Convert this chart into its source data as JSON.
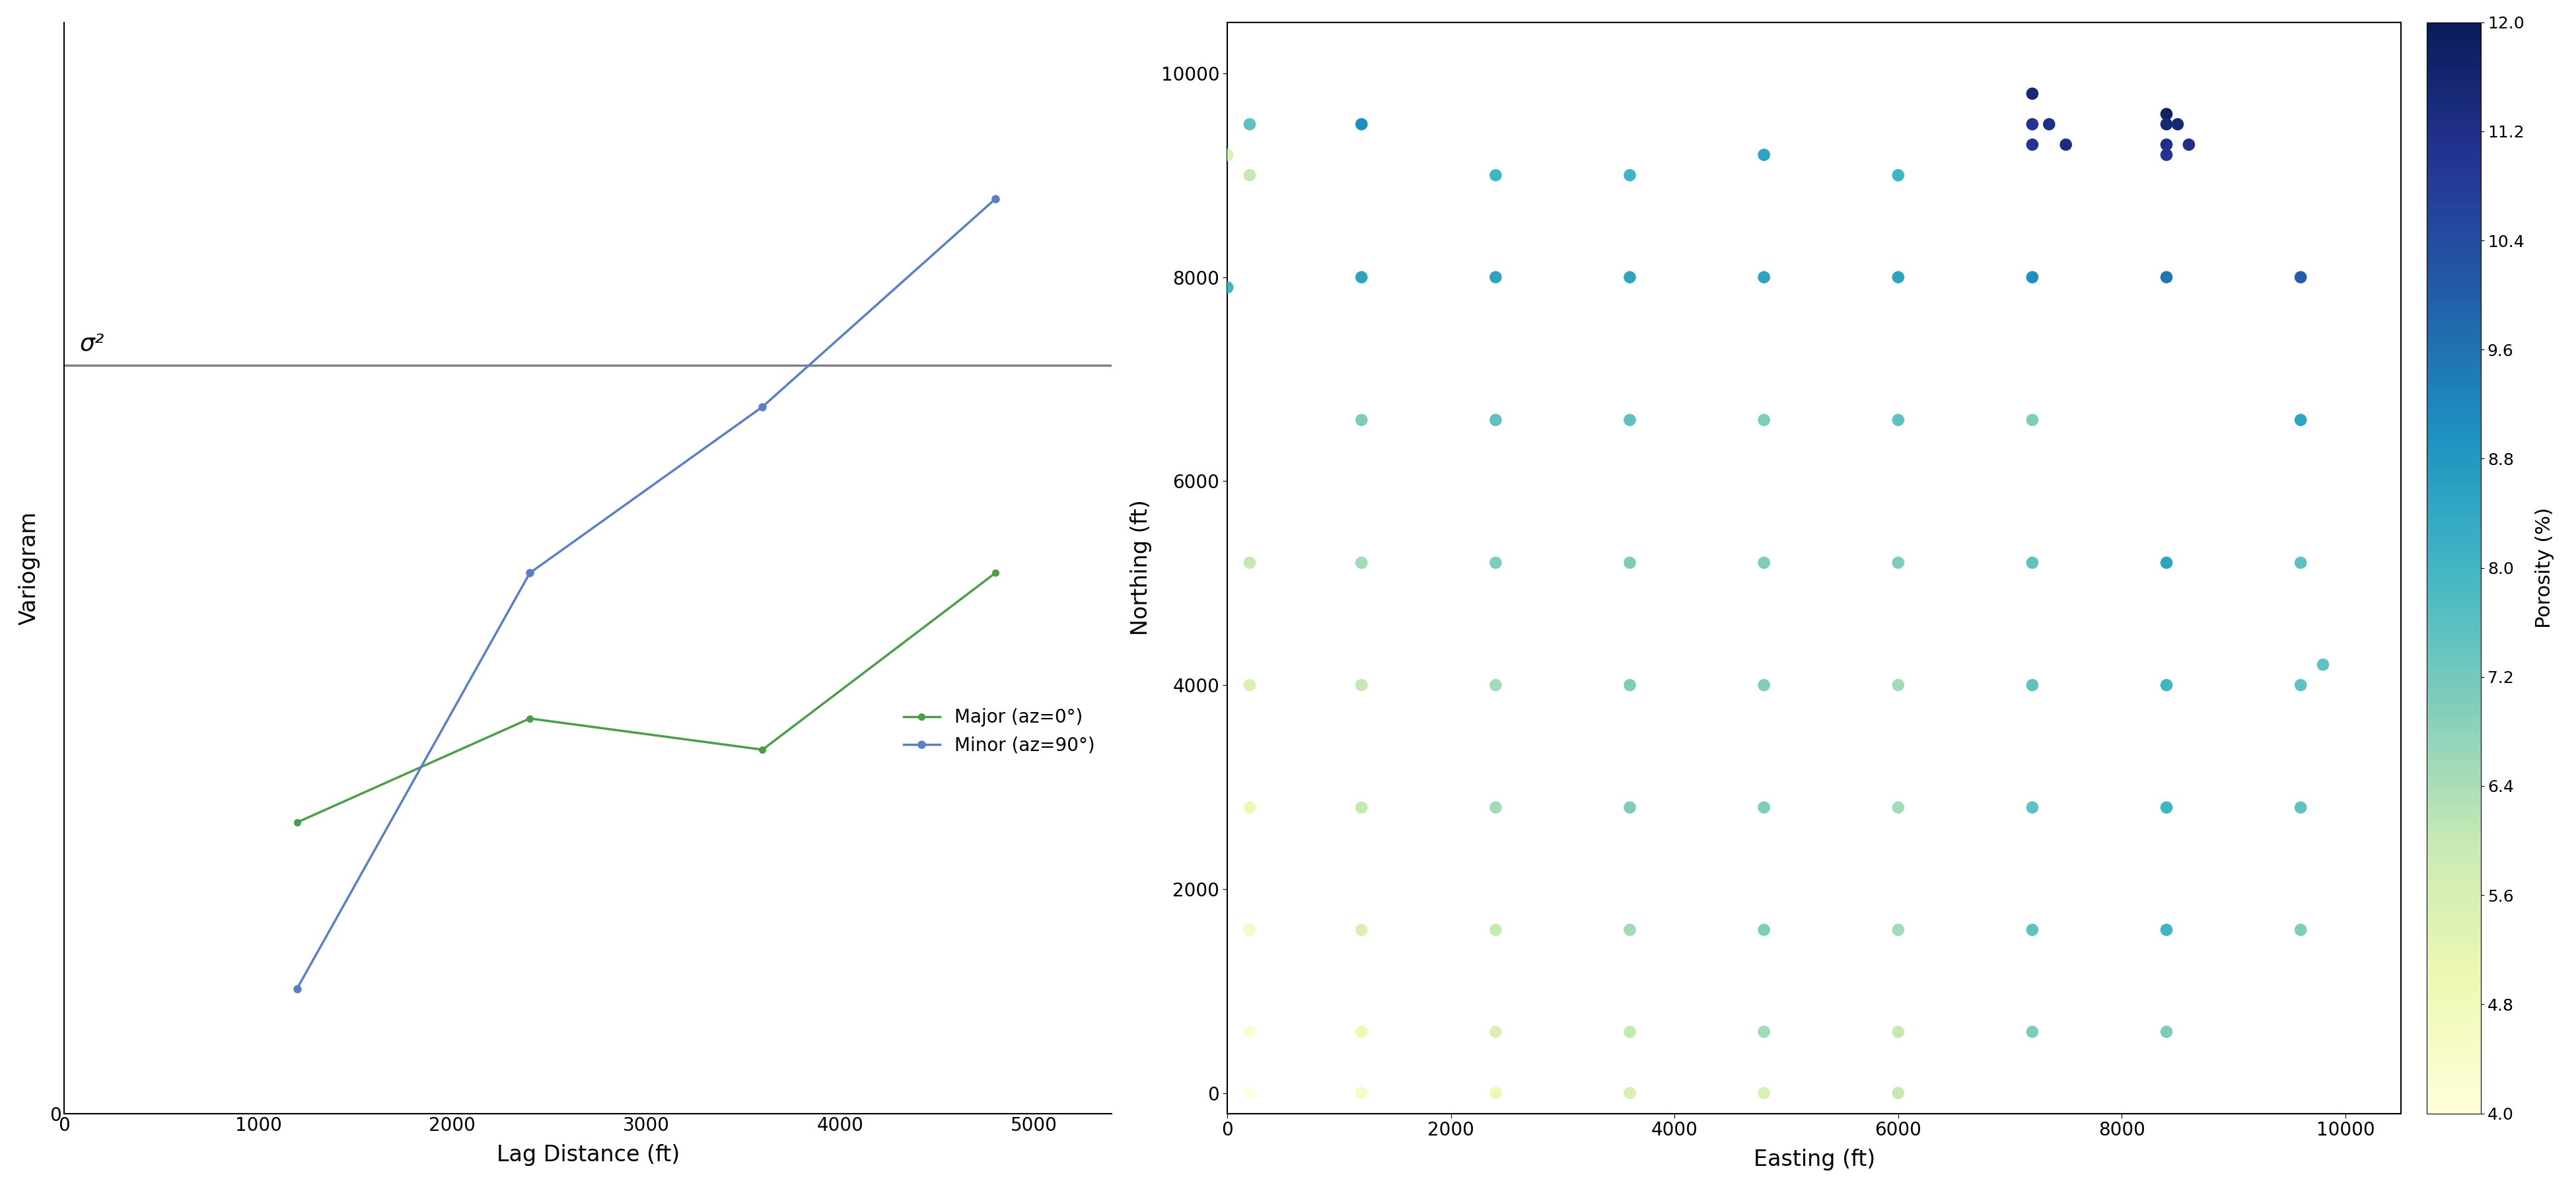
{
  "variogram": {
    "major_lag": [
      1200,
      2400,
      3600,
      4800
    ],
    "major_values": [
      0.28,
      0.38,
      0.35,
      0.52
    ],
    "minor_lag": [
      1200,
      2400,
      3600,
      4800
    ],
    "minor_values": [
      0.12,
      0.52,
      0.68,
      0.88
    ],
    "sill": 0.72,
    "xlim": [
      0,
      5400
    ],
    "ylim": [
      0,
      1.05
    ],
    "xlabel": "Lag Distance (ft)",
    "ylabel": "Variogram",
    "sill_label": "σ²",
    "major_label": "Major (az=0°)",
    "minor_label": "Minor (az=90°)",
    "major_color": "#4a9e4a",
    "minor_color": "#5b7ec5",
    "sill_color": "#808080",
    "x_ticks": [
      0,
      1000,
      2000,
      3000,
      4000,
      5000
    ],
    "x_tick_labels": [
      "0",
      "1000",
      "2000",
      "3000",
      "4000",
      "5000"
    ]
  },
  "scatter": {
    "easting": [
      200,
      0,
      200,
      0,
      1200,
      1200,
      1200,
      2400,
      2400,
      2400,
      3600,
      3600,
      3600,
      4800,
      4800,
      4800,
      6000,
      6000,
      6000,
      7200,
      7200,
      7200,
      7200,
      7200,
      7350,
      7500,
      8400,
      8400,
      8400,
      8400,
      8400,
      8500,
      8600,
      9600,
      9600,
      9800,
      200,
      1200,
      2400,
      3600,
      4800,
      6000,
      7200,
      8400,
      9600,
      200,
      1200,
      2400,
      3600,
      4800,
      6000,
      7200,
      8400,
      9600,
      200,
      1200,
      2400,
      3600,
      4800,
      6000,
      7200,
      8400,
      9600,
      200,
      1200,
      2400,
      3600,
      4800,
      6000,
      7200,
      8400,
      9600,
      200,
      1200,
      2400,
      3600,
      4800,
      6000,
      7200,
      8400,
      200,
      1200,
      2400,
      3600,
      4800,
      6000
    ],
    "northing": [
      9500,
      9200,
      9000,
      7900,
      9500,
      8000,
      6600,
      9000,
      8000,
      6600,
      9000,
      8000,
      6600,
      9200,
      8000,
      6600,
      9000,
      8000,
      6600,
      9800,
      9500,
      9300,
      8000,
      6600,
      9500,
      9300,
      9600,
      9500,
      9300,
      9200,
      8000,
      9500,
      9300,
      8000,
      6600,
      4200,
      5200,
      5200,
      5200,
      5200,
      5200,
      5200,
      5200,
      5200,
      5200,
      4000,
      4000,
      4000,
      4000,
      4000,
      4000,
      4000,
      4000,
      4000,
      2800,
      2800,
      2800,
      2800,
      2800,
      2800,
      2800,
      2800,
      2800,
      1600,
      1600,
      1600,
      1600,
      1600,
      1600,
      1600,
      1600,
      1600,
      600,
      600,
      600,
      600,
      600,
      600,
      600,
      600,
      0,
      0,
      0,
      0,
      0,
      0
    ],
    "porosity": [
      7.5,
      5.5,
      6.0,
      8.0,
      9.0,
      8.5,
      7.0,
      8.0,
      8.5,
      7.5,
      8.0,
      8.5,
      7.5,
      8.5,
      8.5,
      7.0,
      8.0,
      8.5,
      7.5,
      11.5,
      11.0,
      11.0,
      9.0,
      7.0,
      11.2,
      11.3,
      11.8,
      11.5,
      11.2,
      11.0,
      9.5,
      11.5,
      11.2,
      10.0,
      8.5,
      7.5,
      6.0,
      6.5,
      7.0,
      7.0,
      7.0,
      7.0,
      7.5,
      8.5,
      7.5,
      5.5,
      6.0,
      6.5,
      7.0,
      7.0,
      6.5,
      7.5,
      8.0,
      7.5,
      5.0,
      6.0,
      6.5,
      7.0,
      7.0,
      6.5,
      7.5,
      8.0,
      7.5,
      4.5,
      5.5,
      6.0,
      6.5,
      7.0,
      6.5,
      7.5,
      8.0,
      7.0,
      4.2,
      5.0,
      5.5,
      6.0,
      6.5,
      6.0,
      7.0,
      7.0,
      4.0,
      4.5,
      5.0,
      5.5,
      5.5,
      6.0
    ],
    "xlim": [
      0,
      10500
    ],
    "ylim": [
      -200,
      10500
    ],
    "xlabel": "Easting (ft)",
    "ylabel": "Northing (ft)",
    "x_ticks": [
      0,
      2000,
      4000,
      6000,
      8000,
      10000
    ],
    "y_ticks": [
      0,
      2000,
      4000,
      6000,
      8000,
      10000
    ],
    "cmap": "YlGnBu",
    "vmin": 4.0,
    "vmax": 12.0,
    "cbar_ticks": [
      4.0,
      4.8,
      5.6,
      6.4,
      7.2,
      8.0,
      8.8,
      9.6,
      10.4,
      11.2,
      12.0
    ],
    "cbar_label": "Porosity (%)",
    "marker_size": 180
  }
}
